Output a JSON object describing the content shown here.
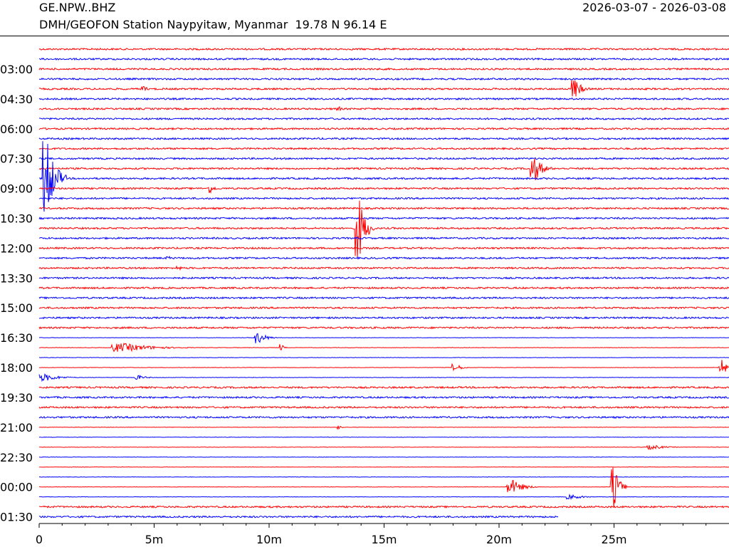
{
  "header": {
    "station": "GE.NPW..BHZ",
    "date_range": "2026-03-07 - 2026-03-08",
    "description": "DMH/GEOFON Station Naypyitaw, Myanmar  19.78 N 96.14 E"
  },
  "colors": {
    "odd": "#ff0000",
    "even": "#0000ff",
    "axis": "#000000"
  },
  "chart_data": {
    "type": "line",
    "title": "",
    "xlabel": "",
    "ylabel": "",
    "xlim": [
      0,
      30
    ],
    "x_ticks": [
      {
        "value": 0,
        "label": "0"
      },
      {
        "value": 5,
        "label": "5m"
      },
      {
        "value": 10,
        "label": "10m"
      },
      {
        "value": 15,
        "label": "15m"
      },
      {
        "value": 20,
        "label": "20m"
      },
      {
        "value": 25,
        "label": "25m"
      }
    ],
    "time_labels": [
      "03:00",
      "04:30",
      "06:00",
      "07:30",
      "09:00",
      "10:30",
      "12:00",
      "13:30",
      "15:00",
      "16:30",
      "18:00",
      "19:30",
      "21:00",
      "22:30",
      "00:00",
      "01:30"
    ],
    "trace_count": 48,
    "last_trace_end_min": 22.6,
    "noisy_traces": [
      0,
      1,
      2,
      3,
      4,
      5,
      6,
      7,
      8,
      9,
      10,
      11,
      12,
      13,
      14,
      15,
      16,
      17,
      18,
      19,
      20,
      21,
      22,
      23,
      24,
      25,
      26,
      27,
      28,
      34,
      35,
      36,
      37,
      46,
      47
    ],
    "events": [
      {
        "trace": 4,
        "minute": 23.2,
        "amp": 14,
        "dur": 0.8
      },
      {
        "trace": 4,
        "minute": 4.5,
        "amp": 4,
        "dur": 0.5
      },
      {
        "trace": 6,
        "minute": 13.0,
        "amp": 4,
        "dur": 0.3
      },
      {
        "trace": 13,
        "minute": 0.2,
        "amp": 55,
        "dur": 1.0
      },
      {
        "trace": 12,
        "minute": 21.4,
        "amp": 18,
        "dur": 1.0
      },
      {
        "trace": 14,
        "minute": 7.4,
        "amp": 7,
        "dur": 0.5
      },
      {
        "trace": 18,
        "minute": 13.8,
        "amp": 45,
        "dur": 0.8
      },
      {
        "trace": 21,
        "minute": 5.6,
        "amp": 3,
        "dur": 0.3
      },
      {
        "trace": 22,
        "minute": 6.0,
        "amp": 3,
        "dur": 0.6
      },
      {
        "trace": 29,
        "minute": 9.4,
        "amp": 8,
        "dur": 1.0
      },
      {
        "trace": 30,
        "minute": 3.2,
        "amp": 6,
        "dur": 3.5
      },
      {
        "trace": 30,
        "minute": 10.5,
        "amp": 5,
        "dur": 0.3
      },
      {
        "trace": 32,
        "minute": 18.0,
        "amp": 5,
        "dur": 0.8
      },
      {
        "trace": 32,
        "minute": 29.6,
        "amp": 14,
        "dur": 0.6
      },
      {
        "trace": 33,
        "minute": 0.0,
        "amp": 5,
        "dur": 1.8
      },
      {
        "trace": 33,
        "minute": 4.2,
        "amp": 3,
        "dur": 1.0
      },
      {
        "trace": 38,
        "minute": 13.0,
        "amp": 3,
        "dur": 0.3
      },
      {
        "trace": 40,
        "minute": 26.5,
        "amp": 3,
        "dur": 1.5
      },
      {
        "trace": 44,
        "minute": 20.4,
        "amp": 10,
        "dur": 1.3
      },
      {
        "trace": 44,
        "minute": 24.9,
        "amp": 28,
        "dur": 0.7
      },
      {
        "trace": 45,
        "minute": 23.0,
        "amp": 3,
        "dur": 1.5
      }
    ]
  }
}
